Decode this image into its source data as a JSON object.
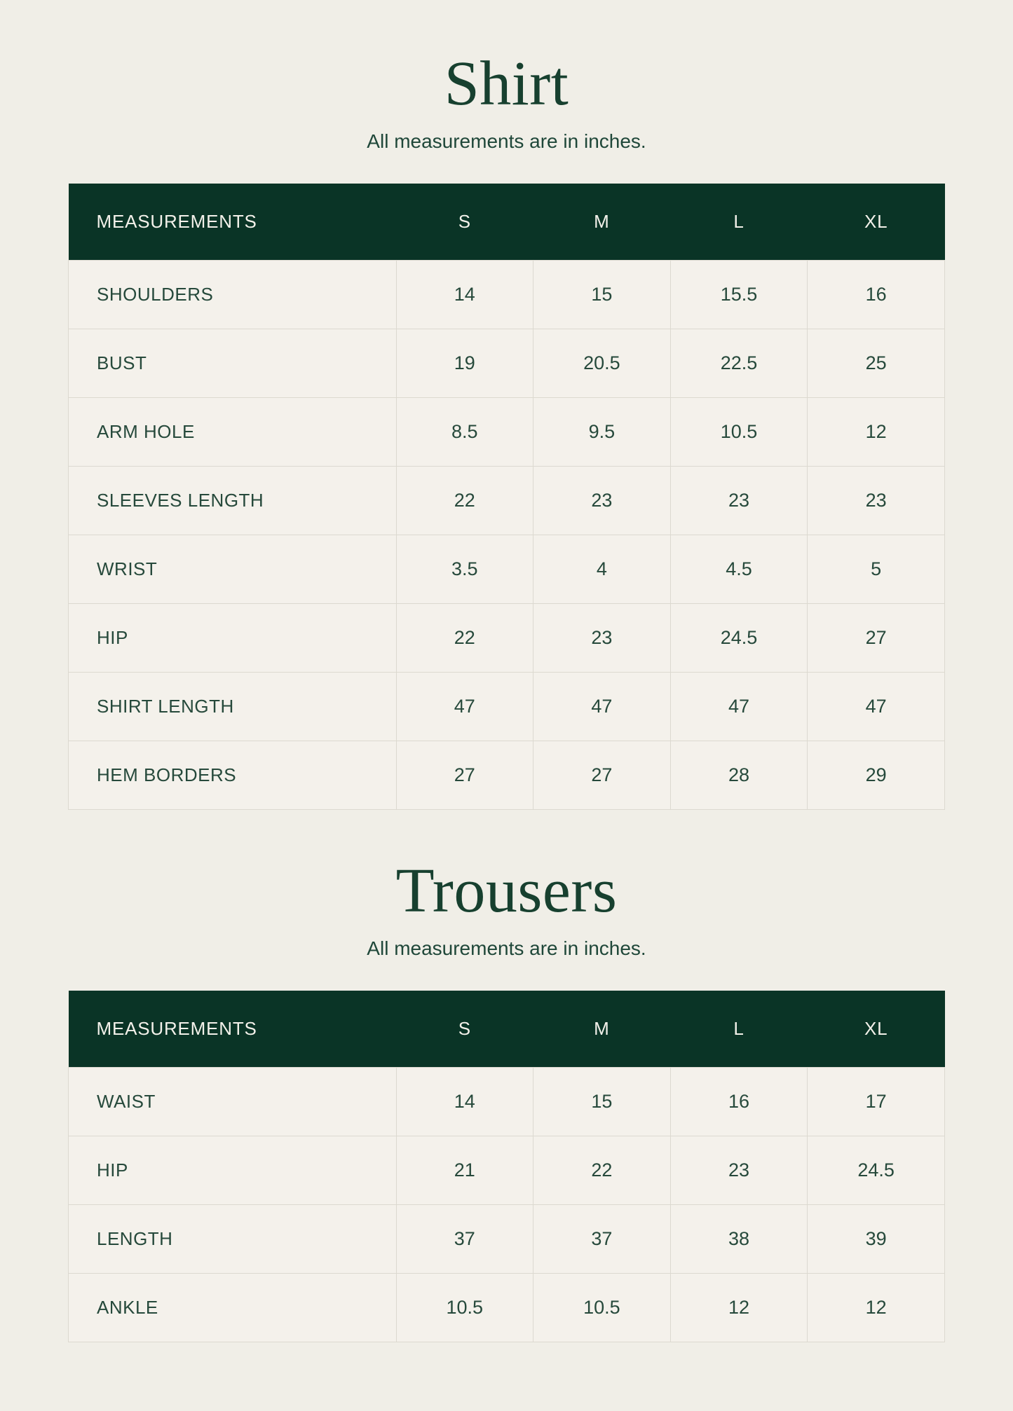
{
  "page": {
    "background_color": "#f0eee7",
    "header_color": "#0a3426",
    "header_text_color": "#f3f1ea",
    "title_color": "#17402f",
    "cell_text_color": "#26493b",
    "border_color": "#dcd9d0"
  },
  "sections": [
    {
      "title": "Shirt",
      "subtitle": "All measurements are in inches.",
      "table": {
        "columns": [
          "MEASUREMENTS",
          "S",
          "M",
          "L",
          "XL"
        ],
        "rows": [
          {
            "label": "SHOULDERS",
            "values": [
              "14",
              "15",
              "15.5",
              "16"
            ]
          },
          {
            "label": "BUST",
            "values": [
              "19",
              "20.5",
              "22.5",
              "25"
            ]
          },
          {
            "label": "ARM HOLE",
            "values": [
              "8.5",
              "9.5",
              "10.5",
              "12"
            ]
          },
          {
            "label": "SLEEVES LENGTH",
            "values": [
              "22",
              "23",
              "23",
              "23"
            ]
          },
          {
            "label": "WRIST",
            "values": [
              "3.5",
              "4",
              "4.5",
              "5"
            ]
          },
          {
            "label": "HIP",
            "values": [
              "22",
              "23",
              "24.5",
              "27"
            ]
          },
          {
            "label": "SHIRT LENGTH",
            "values": [
              "47",
              "47",
              "47",
              "47"
            ]
          },
          {
            "label": "HEM BORDERS",
            "values": [
              "27",
              "27",
              "28",
              "29"
            ]
          }
        ]
      }
    },
    {
      "title": "Trousers",
      "subtitle": "All measurements are in inches.",
      "table": {
        "columns": [
          "MEASUREMENTS",
          "S",
          "M",
          "L",
          "XL"
        ],
        "rows": [
          {
            "label": "WAIST",
            "values": [
              "14",
              "15",
              "16",
              "17"
            ]
          },
          {
            "label": "HIP",
            "values": [
              "21",
              "22",
              "23",
              "24.5"
            ]
          },
          {
            "label": "LENGTH",
            "values": [
              "37",
              "37",
              "38",
              "39"
            ]
          },
          {
            "label": "ANKLE",
            "values": [
              "10.5",
              "10.5",
              "12",
              "12"
            ]
          }
        ]
      }
    }
  ]
}
